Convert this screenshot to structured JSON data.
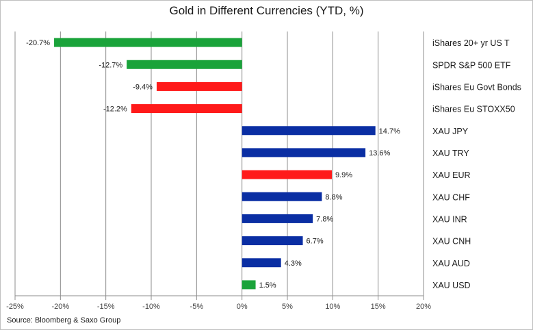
{
  "chart_data": {
    "type": "bar",
    "orientation": "horizontal",
    "title": "Gold in Different Currencies (YTD, %)",
    "source": "Source: Bloomberg & Saxo Group",
    "xlim": [
      -25,
      20
    ],
    "x_ticks": [
      -25,
      -20,
      -15,
      -10,
      -5,
      0,
      5,
      10,
      15,
      20
    ],
    "x_tick_labels": [
      "-25%",
      "-20%",
      "-15%",
      "-10%",
      "-5%",
      "0%",
      "5%",
      "10%",
      "15%",
      "20%"
    ],
    "grid": "vertical",
    "bars": [
      {
        "category": "iShares 20+ yr US T",
        "value": -20.7,
        "label": "-20.7%",
        "color": "#1aa33a"
      },
      {
        "category": "SPDR S&P 500 ETF",
        "value": -12.7,
        "label": "-12.7%",
        "color": "#1aa33a"
      },
      {
        "category": "iShares Eu Govt Bonds",
        "value": -9.4,
        "label": "-9.4%",
        "color": "#ff1a1a"
      },
      {
        "category": "iShares Eu STOXX50",
        "value": -12.2,
        "label": "-12.2%",
        "color": "#ff1a1a"
      },
      {
        "category": "XAU JPY",
        "value": 14.7,
        "label": "14.7%",
        "color": "#0a2ea3"
      },
      {
        "category": "XAU TRY",
        "value": 13.6,
        "label": "13.6%",
        "color": "#0a2ea3"
      },
      {
        "category": "XAU EUR",
        "value": 9.9,
        "label": "9.9%",
        "color": "#ff1a1a"
      },
      {
        "category": "XAU CHF",
        "value": 8.8,
        "label": "8.8%",
        "color": "#0a2ea3"
      },
      {
        "category": "XAU INR",
        "value": 7.8,
        "label": "7.8%",
        "color": "#0a2ea3"
      },
      {
        "category": "XAU CNH",
        "value": 6.7,
        "label": "6.7%",
        "color": "#0a2ea3"
      },
      {
        "category": "XAU AUD",
        "value": 4.3,
        "label": "4.3%",
        "color": "#0a2ea3"
      },
      {
        "category": "XAU USD",
        "value": 1.5,
        "label": "1.5%",
        "color": "#1aa33a"
      }
    ],
    "gridline_color": "#8c8c8c"
  }
}
